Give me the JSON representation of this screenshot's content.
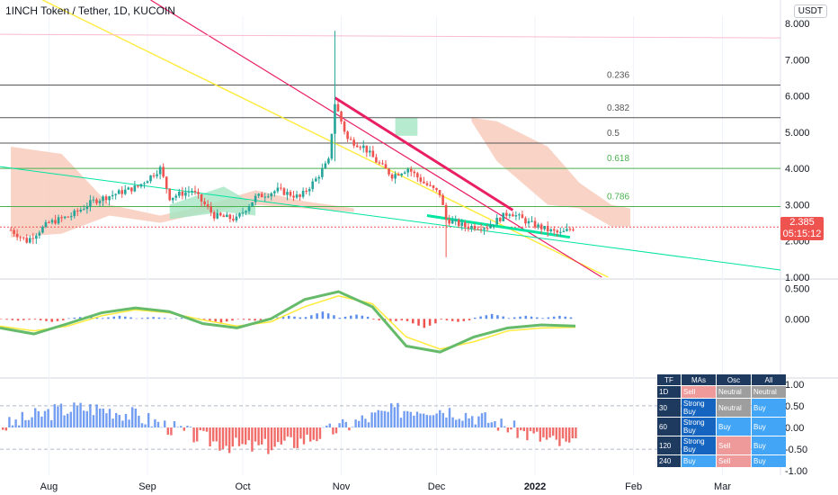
{
  "header": {
    "title": "1INCH Token / Tether, 1D, KUCOIN",
    "currency": "USDT"
  },
  "price": {
    "last": "2.385",
    "countdown": "05:15:12"
  },
  "colors": {
    "up": "#26a69a",
    "down": "#ef5350",
    "pink": "#e91e63",
    "yellow": "#ffeb3b",
    "teal": "#00e5a0",
    "blueHist": "#5b8def",
    "lightBlueHist": "#4dd0e1",
    "cloudRed": "#f8c8b8",
    "cloudGreen": "#a5e6c3"
  },
  "chart_data": [
    {
      "type": "candlestick",
      "title": "1INCH Token / Tether, 1D, KUCOIN",
      "ylabel": "USDT",
      "ylim": [
        1.0,
        8.2
      ],
      "y_ticks": [
        "8.000",
        "7.000",
        "6.000",
        "5.000",
        "4.000",
        "3.000",
        "2.000",
        "1.000"
      ],
      "x_ticks": [
        "Aug",
        "Sep",
        "Oct",
        "Nov",
        "Dec",
        "2022",
        "Feb",
        "Mar"
      ],
      "fib_levels": [
        {
          "label": "0.236",
          "value": 6.3
        },
        {
          "label": "0.382",
          "value": 5.4
        },
        {
          "label": "0.5",
          "value": 4.7
        },
        {
          "label": "0.618",
          "value": 4.0
        },
        {
          "label": "0.786",
          "value": 2.95
        }
      ],
      "close_path": [
        [
          "2021-07-20",
          2.3
        ],
        [
          "2021-07-25",
          2.0
        ],
        [
          "2021-08-01",
          2.5
        ],
        [
          "2021-08-08",
          2.7
        ],
        [
          "2021-08-15",
          3.1
        ],
        [
          "2021-08-22",
          3.3
        ],
        [
          "2021-08-29",
          3.5
        ],
        [
          "2021-09-05",
          4.0
        ],
        [
          "2021-09-08",
          3.2
        ],
        [
          "2021-09-15",
          3.4
        ],
        [
          "2021-09-22",
          2.7
        ],
        [
          "2021-09-29",
          2.6
        ],
        [
          "2021-10-05",
          3.2
        ],
        [
          "2021-10-12",
          3.4
        ],
        [
          "2021-10-19",
          3.2
        ],
        [
          "2021-10-24",
          3.7
        ],
        [
          "2021-10-28",
          4.2
        ],
        [
          "2021-10-30",
          5.8
        ],
        [
          "2021-11-03",
          4.8
        ],
        [
          "2021-11-08",
          4.6
        ],
        [
          "2021-11-12",
          4.2
        ],
        [
          "2021-11-17",
          3.8
        ],
        [
          "2021-11-22",
          4.0
        ],
        [
          "2021-11-27",
          3.6
        ],
        [
          "2021-12-02",
          3.3
        ],
        [
          "2021-12-04",
          2.6
        ],
        [
          "2021-12-10",
          2.4
        ],
        [
          "2021-12-17",
          2.4
        ],
        [
          "2021-12-24",
          2.8
        ],
        [
          "2021-12-30",
          2.5
        ],
        [
          "2022-01-05",
          2.3
        ],
        [
          "2022-01-09",
          2.2
        ],
        [
          "2022-01-14",
          2.4
        ]
      ],
      "current_price": 2.385
    },
    {
      "type": "line",
      "title": "",
      "ylim": [
        -0.95,
        0.6
      ],
      "y_ticks": [
        "0.500",
        "0.000"
      ],
      "series": [
        {
          "values": [
            -0.15,
            -0.25,
            -0.08,
            0.1,
            0.18,
            0.12,
            -0.08,
            -0.15,
            0.0,
            0.32,
            0.45,
            0.2,
            -0.45,
            -0.55,
            -0.3,
            -0.15,
            -0.1,
            -0.12
          ]
        },
        {
          "values": [
            -0.12,
            -0.2,
            -0.12,
            0.05,
            0.15,
            0.1,
            -0.02,
            -0.12,
            -0.05,
            0.2,
            0.38,
            0.25,
            -0.3,
            -0.5,
            -0.38,
            -0.2,
            -0.15,
            -0.14
          ]
        }
      ]
    },
    {
      "type": "bar",
      "title": "",
      "ylim": [
        -1.1,
        1.1
      ],
      "y_ticks": [
        "1.00",
        "0.50",
        "0.00",
        "-0.50",
        "-1.00"
      ]
    }
  ],
  "tf_table": {
    "headers": [
      "TF",
      "MAs",
      "Osc",
      "All"
    ],
    "rows": [
      {
        "tf": "1D",
        "mas": "Sell",
        "osc": "Neutral",
        "all": "Neutral"
      },
      {
        "tf": "30",
        "mas": "Strong Buy",
        "osc": "Neutral",
        "all": "Buy"
      },
      {
        "tf": "60",
        "mas": "Strong Buy",
        "osc": "Buy",
        "all": "Buy"
      },
      {
        "tf": "120",
        "mas": "Strong Buy",
        "osc": "Sell",
        "all": "Buy"
      },
      {
        "tf": "240",
        "mas": "Buy",
        "osc": "Sell",
        "all": "Buy"
      }
    ]
  }
}
